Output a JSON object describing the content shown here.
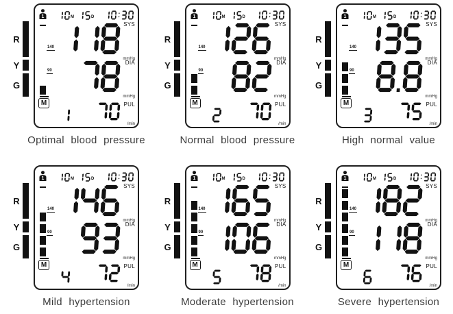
{
  "display": {
    "date_month": "10",
    "month_suffix": "M",
    "date_day": "15",
    "day_suffix": "D",
    "time": "10:30",
    "sys_label": "SYS",
    "dia_label": "DIA",
    "pul_label": "PUL",
    "mmhg_label": "mmHg",
    "per_min_label": "/min",
    "memory_icon_label": "M",
    "user_icon_number": "1",
    "scale_mark_upper": "140",
    "scale_mark_lower": "90"
  },
  "legend": {
    "zones": [
      {
        "letter": "R"
      },
      {
        "letter": "Y"
      },
      {
        "letter": "G"
      }
    ]
  },
  "monitors": [
    {
      "caption": "Optimal blood pressure",
      "sys": "118",
      "dia": "78",
      "pul": "70",
      "memory_index": "1",
      "level": 1
    },
    {
      "caption": "Normal blood pressure",
      "sys": "126",
      "dia": "82",
      "pul": "70",
      "memory_index": "2",
      "level": 2
    },
    {
      "caption": "High normal value",
      "sys": "135",
      "dia": "88",
      "pul": "75",
      "memory_index": "3",
      "level": 3,
      "dia_dot_shown": true
    },
    {
      "caption": "Mild hypertension",
      "sys": "146",
      "dia": "93",
      "pul": "72",
      "memory_index": "4",
      "level": 4
    },
    {
      "caption": "Moderate hypertension",
      "sys": "165",
      "dia": "106",
      "pul": "78",
      "memory_index": "5",
      "level": 5
    },
    {
      "caption": "Severe hypertension",
      "sys": "182",
      "dia": "118",
      "pul": "76",
      "memory_index": "6",
      "level": 6
    }
  ],
  "icons": {
    "user": "user-icon",
    "memory": "memory-m-icon"
  },
  "colors": {
    "lcd_ink": "#121212",
    "panel_border": "#1f1f1f",
    "caption_text": "#3c3c3c"
  }
}
